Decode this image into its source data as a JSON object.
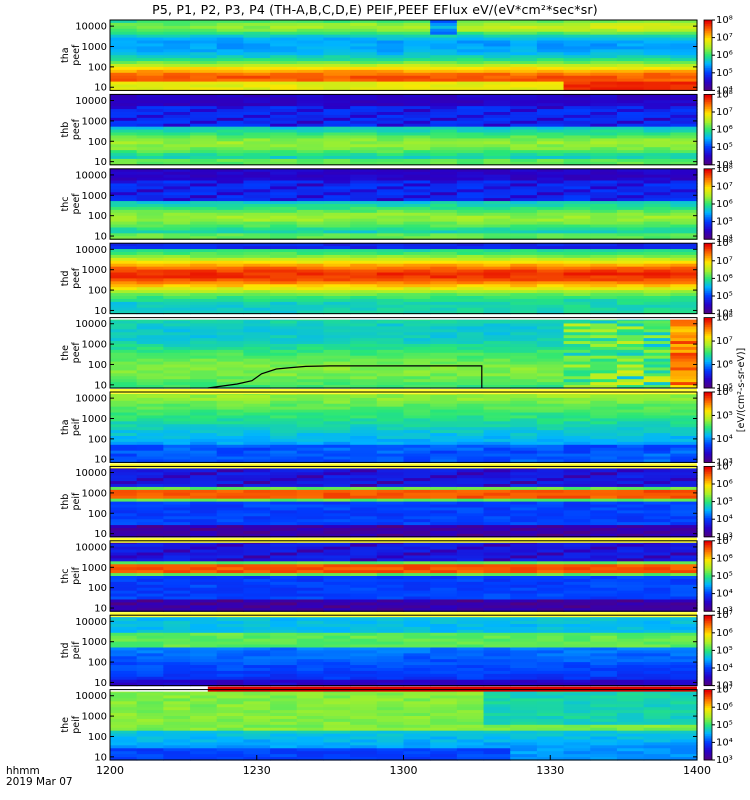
{
  "title": "P5, P1, P2, P3, P4 (TH-A,B,C,D,E) PEIF,PEEF EFlux eV/(eV*cm²*sec*sr)",
  "footer": {
    "line1": "hhmm",
    "line2": "2019 Mar 07"
  },
  "colorbar_units": "[eV/(cm²-s-sr-eV)]",
  "chart_data": {
    "type": "heatmap",
    "x_ticks": [
      "1200",
      "1230",
      "1300",
      "1330",
      "1400"
    ],
    "x_range": [
      "12:00",
      "14:00"
    ],
    "y_scale": "log",
    "y_ticks": [
      "10",
      "100",
      "1000",
      "10000"
    ],
    "panels": [
      {
        "label": [
          "tha",
          "peef"
        ],
        "clim": [
          4,
          8
        ],
        "cbar_ticks": [
          "10⁴",
          "10⁵",
          "10⁶",
          "10⁷",
          "10⁸"
        ],
        "profile": "peef_hot",
        "status_bar": "none"
      },
      {
        "label": [
          "thb",
          "peef"
        ],
        "clim": [
          4,
          8
        ],
        "cbar_ticks": [
          "10⁴",
          "10⁵",
          "10⁶",
          "10⁷",
          "10⁸"
        ],
        "profile": "peef_cool",
        "status_bar": "none"
      },
      {
        "label": [
          "thc",
          "peef"
        ],
        "clim": [
          4,
          8
        ],
        "cbar_ticks": [
          "10⁴",
          "10⁵",
          "10⁶",
          "10⁷",
          "10⁸"
        ],
        "profile": "peef_cool",
        "status_bar": "none"
      },
      {
        "label": [
          "thd",
          "peef"
        ],
        "clim": [
          4,
          8
        ],
        "cbar_ticks": [
          "10⁴",
          "10⁵",
          "10⁶",
          "10⁷",
          "10⁸"
        ],
        "profile": "peef_hot_mid",
        "status_bar": "none"
      },
      {
        "label": [
          "the",
          "peef"
        ],
        "clim": [
          5,
          8
        ],
        "cbar_ticks": [
          "10⁵",
          "10⁶",
          "10⁷",
          "10⁸"
        ],
        "profile": "peef_e",
        "status_bar": "white"
      },
      {
        "label": [
          "tha",
          "peif"
        ],
        "clim": [
          3,
          6
        ],
        "cbar_ticks": [
          "10³",
          "10⁴",
          "10⁵",
          "10⁶"
        ],
        "profile": "peif_a",
        "status_bar": "yellow"
      },
      {
        "label": [
          "thb",
          "peif"
        ],
        "clim": [
          3,
          7
        ],
        "cbar_ticks": [
          "10³",
          "10⁴",
          "10⁵",
          "10⁶",
          "10⁷"
        ],
        "profile": "peif_band",
        "status_bar": "yellow"
      },
      {
        "label": [
          "thc",
          "peif"
        ],
        "clim": [
          3,
          7
        ],
        "cbar_ticks": [
          "10³",
          "10⁴",
          "10⁵",
          "10⁶",
          "10⁷"
        ],
        "profile": "peif_band",
        "status_bar": "yellow"
      },
      {
        "label": [
          "thd",
          "peif"
        ],
        "clim": [
          3,
          7
        ],
        "cbar_ticks": [
          "10³",
          "10⁴",
          "10⁵",
          "10⁶",
          "10⁷"
        ],
        "profile": "peif_d",
        "status_bar": "yellow"
      },
      {
        "label": [
          "the",
          "peif"
        ],
        "clim": [
          3,
          7
        ],
        "cbar_ticks": [
          "10³",
          "10⁴",
          "10⁵",
          "10⁶",
          "10⁷"
        ],
        "profile": "peif_e",
        "status_bar": "red_from_1220"
      }
    ],
    "line_overlay": {
      "panel": 4,
      "points_hhmm_ev": [
        [
          "12:20",
          7
        ],
        [
          "12:26",
          11
        ],
        [
          "12:29",
          16
        ],
        [
          "12:31",
          35
        ],
        [
          "12:34",
          60
        ],
        [
          "12:37",
          70
        ],
        [
          "12:40",
          80
        ],
        [
          "12:45",
          85
        ],
        [
          "13:16",
          85
        ],
        [
          "13:16",
          7
        ]
      ]
    }
  }
}
